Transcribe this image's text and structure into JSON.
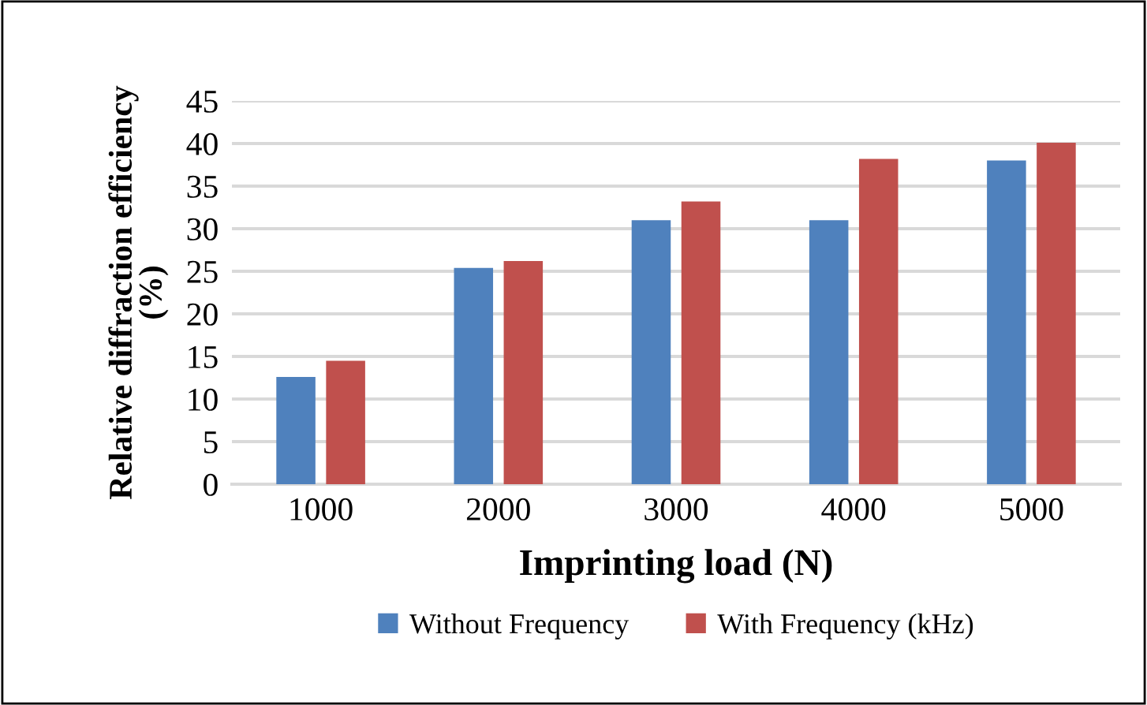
{
  "chart_data": {
    "type": "bar",
    "xlabel": "Imprinting load (N)",
    "ylabel": "Relative diffraction efficiency\n(%)",
    "categories": [
      "1000",
      "2000",
      "3000",
      "4000",
      "5000"
    ],
    "series": [
      {
        "name": "Without Frequency",
        "color": "#4f81bd",
        "values": [
          12.6,
          25.4,
          31.0,
          31.0,
          38.0
        ]
      },
      {
        "name": "With Frequency (kHz)",
        "color": "#c0504d",
        "values": [
          14.5,
          26.2,
          33.2,
          38.2,
          40.1
        ]
      }
    ],
    "ylim": [
      0,
      45
    ],
    "yticks": [
      0,
      5,
      10,
      15,
      20,
      25,
      30,
      35,
      40,
      45
    ],
    "grid": "y",
    "legend": "bottom"
  }
}
